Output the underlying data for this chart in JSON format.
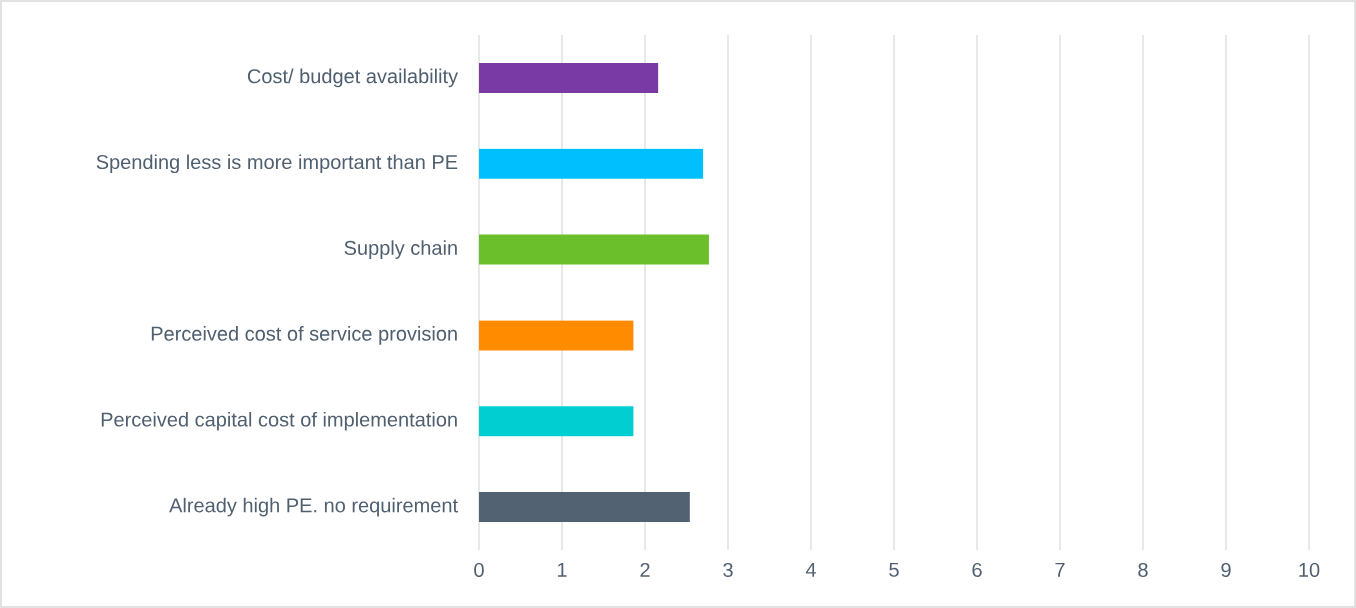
{
  "chart_data": {
    "type": "bar",
    "orientation": "horizontal",
    "categories": [
      "Cost/ budget availability",
      "Spending less is more important than PE",
      "Supply chain",
      "Perceived cost of service provision",
      "Perceived capital cost of implementation",
      "Already high PE. no requirement"
    ],
    "values": [
      2.16,
      2.7,
      2.77,
      1.86,
      1.86,
      2.54
    ],
    "colors": [
      "#7a3aa6",
      "#00bfff",
      "#6abf2a",
      "#ff8c00",
      "#00ced1",
      "#526273"
    ],
    "xlim": [
      0,
      10
    ],
    "xticks": [
      0,
      1,
      2,
      3,
      4,
      5,
      6,
      7,
      8,
      9,
      10
    ],
    "grid": "x"
  }
}
